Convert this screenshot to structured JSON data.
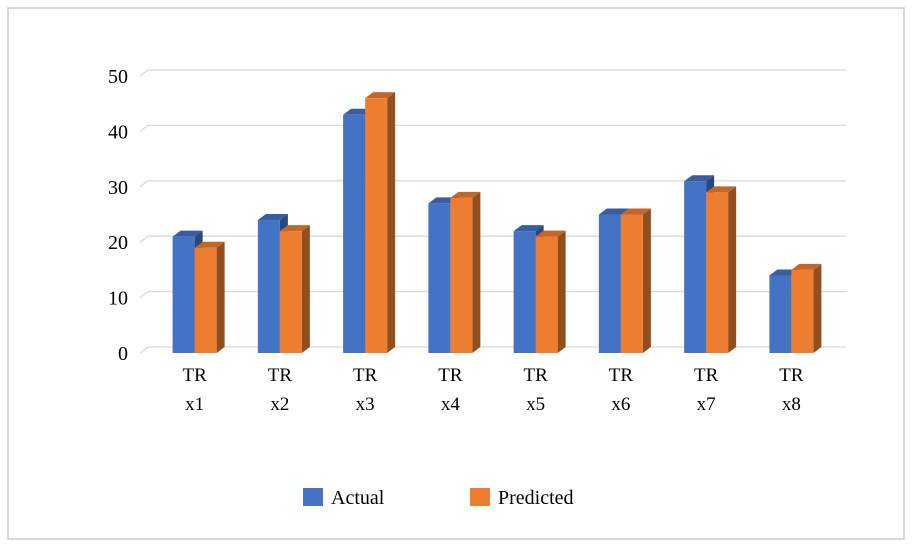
{
  "chart_data": {
    "type": "bar",
    "style": "3d-clustered-column",
    "title": "",
    "xlabel": "",
    "ylabel": "",
    "categories": [
      [
        "TR",
        "x1"
      ],
      [
        "TR",
        "x2"
      ],
      [
        "TR",
        "x3"
      ],
      [
        "TR",
        "x4"
      ],
      [
        "TR",
        "x5"
      ],
      [
        "TR",
        "x6"
      ],
      [
        "TR",
        "x7"
      ],
      [
        "TR",
        "x8"
      ]
    ],
    "series": [
      {
        "name": "Actual",
        "color": "#4472C4",
        "values": [
          21,
          24,
          43,
          27,
          22,
          25,
          31,
          14
        ]
      },
      {
        "name": "Predicted",
        "color": "#ED7D31",
        "values": [
          19,
          22,
          46,
          28,
          21,
          25,
          29,
          15
        ]
      }
    ],
    "ylim": [
      0,
      50
    ],
    "yticks": [
      0,
      10,
      20,
      30,
      40,
      50
    ],
    "grid": true,
    "legend_position": "bottom"
  }
}
